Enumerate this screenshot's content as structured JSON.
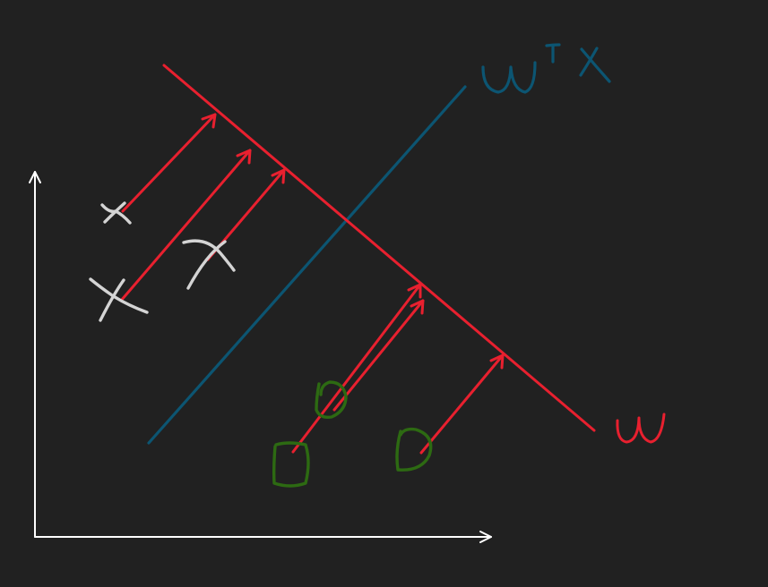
{
  "colors": {
    "background": "#212121",
    "axes": "#ffffff",
    "projection_direction": "#e8202f",
    "decision_boundary": "#0c5572",
    "class_cross": "#d4d4d4",
    "class_circle": "#2d6a12"
  },
  "labels": {
    "projection_direction": "w",
    "decision_boundary": "wᵀx"
  },
  "points": {
    "cross_count": 3,
    "circle_count": 3
  }
}
